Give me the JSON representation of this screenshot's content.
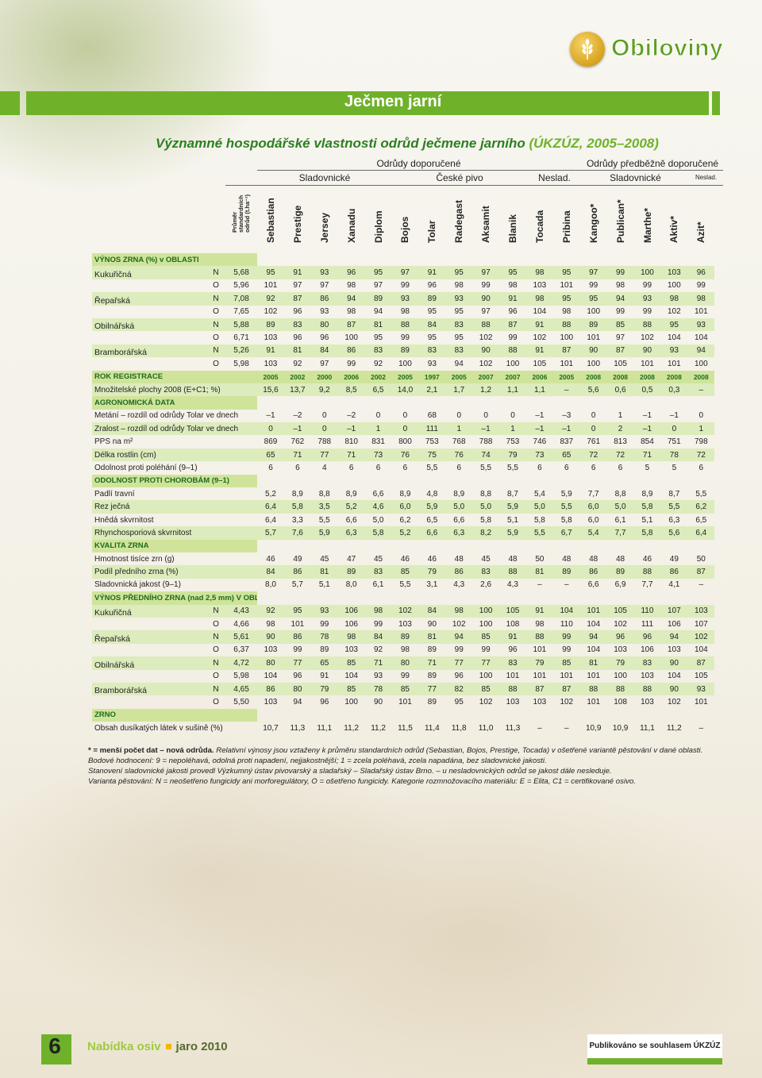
{
  "brand": "Obiloviny",
  "page_title": "Ječmen jarní",
  "subtitle": "Významné hospodářské vlastnosti odrůd ječmene jarního",
  "subtitle_source": "(ÚKZÚZ, 2005–2008)",
  "header": {
    "doporucene": "Odrůdy doporučené",
    "predbezne": "Odrůdy předběžně doporučené",
    "sladovnicke1": "Sladovnické",
    "ceske_pivo": "České pivo",
    "neslad1": "Neslad.",
    "sladovnicke2": "Sladovnické",
    "neslad2": "Neslad."
  },
  "avg_header": [
    "Průměr",
    "standardních",
    "odrůd (t.ha⁻¹)"
  ],
  "varieties": [
    "Sebastian",
    "Prestige",
    "Jersey",
    "Xanadu",
    "Diplom",
    "Bojos",
    "Tolar",
    "Radegast",
    "Aksamit",
    "Blanik",
    "Tocada",
    "Pribina",
    "Kangoo*",
    "Publican*",
    "Marthe*",
    "Aktiv*",
    "Azit*"
  ],
  "rows": [
    {
      "type": "section",
      "label": "VÝNOS ZRNA (%) v OBLASTI"
    },
    {
      "type": "yield",
      "area": "Kukuřičná",
      "v": "N",
      "avg": "5,68",
      "vals": [
        "95",
        "91",
        "93",
        "96",
        "95",
        "97",
        "91",
        "95",
        "97",
        "95",
        "98",
        "95",
        "97",
        "99",
        "100",
        "103",
        "96"
      ]
    },
    {
      "type": "yield",
      "area": "",
      "v": "O",
      "avg": "5,96",
      "vals": [
        "101",
        "97",
        "97",
        "98",
        "97",
        "99",
        "96",
        "98",
        "99",
        "98",
        "103",
        "101",
        "99",
        "98",
        "99",
        "100",
        "99"
      ]
    },
    {
      "type": "yield",
      "area": "Řepařská",
      "v": "N",
      "avg": "7,08",
      "vals": [
        "92",
        "87",
        "86",
        "94",
        "89",
        "93",
        "89",
        "93",
        "90",
        "91",
        "98",
        "95",
        "95",
        "94",
        "93",
        "98",
        "98"
      ]
    },
    {
      "type": "yield",
      "area": "",
      "v": "O",
      "avg": "7,65",
      "vals": [
        "102",
        "96",
        "93",
        "98",
        "94",
        "98",
        "95",
        "95",
        "97",
        "96",
        "104",
        "98",
        "100",
        "99",
        "99",
        "102",
        "101"
      ]
    },
    {
      "type": "yield",
      "area": "Obilnářská",
      "v": "N",
      "avg": "5,88",
      "vals": [
        "89",
        "83",
        "80",
        "87",
        "81",
        "88",
        "84",
        "83",
        "88",
        "87",
        "91",
        "88",
        "89",
        "85",
        "88",
        "95",
        "93"
      ]
    },
    {
      "type": "yield",
      "area": "",
      "v": "O",
      "avg": "6,71",
      "vals": [
        "103",
        "96",
        "96",
        "100",
        "95",
        "99",
        "95",
        "95",
        "102",
        "99",
        "102",
        "100",
        "101",
        "97",
        "102",
        "104",
        "104"
      ]
    },
    {
      "type": "yield",
      "area": "Bramborářská",
      "v": "N",
      "avg": "5,26",
      "vals": [
        "91",
        "81",
        "84",
        "86",
        "83",
        "89",
        "83",
        "83",
        "90",
        "88",
        "91",
        "87",
        "90",
        "87",
        "90",
        "93",
        "94"
      ]
    },
    {
      "type": "yield",
      "area": "",
      "v": "O",
      "avg": "5,98",
      "vals": [
        "103",
        "92",
        "97",
        "99",
        "92",
        "100",
        "93",
        "94",
        "102",
        "100",
        "105",
        "101",
        "100",
        "105",
        "101",
        "101",
        "100"
      ]
    },
    {
      "type": "rok",
      "label": "ROK REGISTRACE",
      "vals": [
        "2005",
        "2002",
        "2000",
        "2006",
        "2002",
        "2005",
        "1997",
        "2005",
        "2007",
        "2007",
        "2006",
        "2005",
        "2008",
        "2008",
        "2008",
        "2008",
        "2008"
      ]
    },
    {
      "type": "data",
      "label": "Množitelské plochy 2008 (E+C1; %)",
      "vals": [
        "15,6",
        "13,7",
        "9,2",
        "8,5",
        "6,5",
        "14,0",
        "2,1",
        "1,7",
        "1,2",
        "1,1",
        "1,1",
        "–",
        "5,6",
        "0,6",
        "0,5",
        "0,3",
        "–"
      ]
    },
    {
      "type": "section",
      "label": "AGRONOMICKÁ DATA"
    },
    {
      "type": "data",
      "label": "Metání – rozdíl od odrůdy Tolar ve dnech",
      "vals": [
        "–1",
        "–2",
        "0",
        "–2",
        "0",
        "0",
        "68",
        "0",
        "0",
        "0",
        "–1",
        "–3",
        "0",
        "1",
        "–1",
        "–1",
        "0"
      ]
    },
    {
      "type": "data",
      "label": "Zralost – rozdíl od odrůdy Tolar ve dnech",
      "vals": [
        "0",
        "–1",
        "0",
        "–1",
        "1",
        "0",
        "111",
        "1",
        "–1",
        "1",
        "–1",
        "–1",
        "0",
        "2",
        "–1",
        "0",
        "1"
      ]
    },
    {
      "type": "data",
      "label": "PPS na m²",
      "vals": [
        "869",
        "762",
        "788",
        "810",
        "831",
        "800",
        "753",
        "768",
        "788",
        "753",
        "746",
        "837",
        "761",
        "813",
        "854",
        "751",
        "798"
      ]
    },
    {
      "type": "data",
      "label": "Délka rostlin (cm)",
      "vals": [
        "65",
        "71",
        "77",
        "71",
        "73",
        "76",
        "75",
        "76",
        "74",
        "79",
        "73",
        "65",
        "72",
        "72",
        "71",
        "78",
        "72"
      ]
    },
    {
      "type": "data",
      "label": "Odolnost proti poléhání (9–1)",
      "vals": [
        "6",
        "6",
        "4",
        "6",
        "6",
        "6",
        "5,5",
        "6",
        "5,5",
        "5,5",
        "6",
        "6",
        "6",
        "6",
        "5",
        "5",
        "6"
      ]
    },
    {
      "type": "section",
      "label": "ODOLNOST PROTI CHOROBÁM (9–1)"
    },
    {
      "type": "data",
      "label": "Padlí travní",
      "vals": [
        "5,2",
        "8,9",
        "8,8",
        "8,9",
        "6,6",
        "8,9",
        "4,8",
        "8,9",
        "8,8",
        "8,7",
        "5,4",
        "5,9",
        "7,7",
        "8,8",
        "8,9",
        "8,7",
        "5,5"
      ]
    },
    {
      "type": "data",
      "label": "Rez ječná",
      "vals": [
        "6,4",
        "5,8",
        "3,5",
        "5,2",
        "4,6",
        "6,0",
        "5,9",
        "5,0",
        "5,0",
        "5,9",
        "5,0",
        "5,5",
        "6,0",
        "5,0",
        "5,8",
        "5,5",
        "6,2"
      ]
    },
    {
      "type": "data",
      "label": "Hnědá skvrnitost",
      "vals": [
        "6,4",
        "3,3",
        "5,5",
        "6,6",
        "5,0",
        "6,2",
        "6,5",
        "6,6",
        "5,8",
        "5,1",
        "5,8",
        "5,8",
        "6,0",
        "6,1",
        "5,1",
        "6,3",
        "6,5"
      ]
    },
    {
      "type": "data",
      "label": "Rhynchosporiová skvrnitost",
      "vals": [
        "5,7",
        "7,6",
        "5,9",
        "6,3",
        "5,8",
        "5,2",
        "6,6",
        "6,3",
        "8,2",
        "5,9",
        "5,5",
        "6,7",
        "5,4",
        "7,7",
        "5,8",
        "5,6",
        "6,4"
      ]
    },
    {
      "type": "section",
      "label": "KVALITA ZRNA"
    },
    {
      "type": "data",
      "label": "Hmotnost tisíce zrn (g)",
      "vals": [
        "46",
        "49",
        "45",
        "47",
        "45",
        "46",
        "46",
        "48",
        "45",
        "48",
        "50",
        "48",
        "48",
        "48",
        "46",
        "49",
        "50"
      ]
    },
    {
      "type": "data",
      "label": "Podíl předního zrna (%)",
      "vals": [
        "84",
        "86",
        "81",
        "89",
        "83",
        "85",
        "79",
        "86",
        "83",
        "88",
        "81",
        "89",
        "86",
        "89",
        "88",
        "86",
        "87"
      ]
    },
    {
      "type": "data",
      "label": "Sladovnická jakost (9–1)",
      "vals": [
        "8,0",
        "5,7",
        "5,1",
        "8,0",
        "6,1",
        "5,5",
        "3,1",
        "4,3",
        "2,6",
        "4,3",
        "–",
        "–",
        "6,6",
        "6,9",
        "7,7",
        "4,1",
        "–"
      ]
    },
    {
      "type": "section",
      "label": "VÝNOS PŘEDNÍHO ZRNA (nad 2,5 mm) V OBLASTI"
    },
    {
      "type": "yield",
      "area": "Kukuřičná",
      "v": "N",
      "avg": "4,43",
      "vals": [
        "92",
        "95",
        "93",
        "106",
        "98",
        "102",
        "84",
        "98",
        "100",
        "105",
        "91",
        "104",
        "101",
        "105",
        "110",
        "107",
        "103"
      ]
    },
    {
      "type": "yield",
      "area": "",
      "v": "O",
      "avg": "4,66",
      "vals": [
        "98",
        "101",
        "99",
        "106",
        "99",
        "103",
        "90",
        "102",
        "100",
        "108",
        "98",
        "110",
        "104",
        "102",
        "111",
        "106",
        "107"
      ]
    },
    {
      "type": "yield",
      "area": "Řepařská",
      "v": "N",
      "avg": "5,61",
      "vals": [
        "90",
        "86",
        "78",
        "98",
        "84",
        "89",
        "81",
        "94",
        "85",
        "91",
        "88",
        "99",
        "94",
        "96",
        "96",
        "94",
        "102"
      ]
    },
    {
      "type": "yield",
      "area": "",
      "v": "O",
      "avg": "6,37",
      "vals": [
        "103",
        "99",
        "89",
        "103",
        "92",
        "98",
        "89",
        "99",
        "99",
        "96",
        "101",
        "99",
        "104",
        "103",
        "106",
        "103",
        "104"
      ]
    },
    {
      "type": "yield",
      "area": "Obilnářská",
      "v": "N",
      "avg": "4,72",
      "vals": [
        "80",
        "77",
        "65",
        "85",
        "71",
        "80",
        "71",
        "77",
        "77",
        "83",
        "79",
        "85",
        "81",
        "79",
        "83",
        "90",
        "87"
      ]
    },
    {
      "type": "yield",
      "area": "",
      "v": "O",
      "avg": "5,98",
      "vals": [
        "104",
        "96",
        "91",
        "104",
        "93",
        "99",
        "89",
        "96",
        "100",
        "101",
        "101",
        "101",
        "101",
        "100",
        "103",
        "104",
        "105"
      ]
    },
    {
      "type": "yield",
      "area": "Bramborářská",
      "v": "N",
      "avg": "4,65",
      "vals": [
        "86",
        "80",
        "79",
        "85",
        "78",
        "85",
        "77",
        "82",
        "85",
        "88",
        "87",
        "87",
        "88",
        "88",
        "88",
        "90",
        "93"
      ]
    },
    {
      "type": "yield",
      "area": "",
      "v": "O",
      "avg": "5,50",
      "vals": [
        "103",
        "94",
        "96",
        "100",
        "90",
        "101",
        "89",
        "95",
        "102",
        "103",
        "103",
        "102",
        "101",
        "108",
        "103",
        "102",
        "101"
      ]
    },
    {
      "type": "section",
      "label": "ZRNO"
    },
    {
      "type": "data",
      "label": "Obsah dusíkatých látek v sušině (%)",
      "vals": [
        "10,7",
        "11,3",
        "11,1",
        "11,2",
        "11,2",
        "11,5",
        "11,4",
        "11,8",
        "11,0",
        "11,3",
        "–",
        "–",
        "10,9",
        "10,9",
        "11,1",
        "11,2",
        "–"
      ]
    }
  ],
  "notes": [
    {
      "bold": "* = menší počet dat – nová odrůda. ",
      "italic": "Relativní výnosy jsou vztaženy k průměru standardních odrůd (Sebastian, Bojos, Prestige, Tocada) v ošetřené variantě pěstování v dané oblasti."
    },
    {
      "bold": "",
      "italic": "Bodové hodnocení: 9 = nepoléhavá, odolná proti napadení, nejjakostnější; 1 = zcela poléhavá, zcela napadána, bez sladovnické jakosti."
    },
    {
      "bold": "",
      "italic": "Stanovení sladovnické jakosti provedl Výzkumný ústav pivovarský a sladařský – Sladařský ústav Brno.  – u nesladovnických odrůd se jakost dále nesleduje."
    },
    {
      "bold": "",
      "italic": "Varianta pěstování: N = neošetřeno fungicidy ani morforegulátory, O = ošetřeno fungicidy. Kategorie rozmnožovacího materiálu: E = Elita, C1 = certifikované osivo."
    }
  ],
  "footer": {
    "page_number": "6",
    "left_a": "Nabídka osiv",
    "left_b": "jaro 2010",
    "right": "Publikováno se souhlasem ÚKZÚZ"
  }
}
